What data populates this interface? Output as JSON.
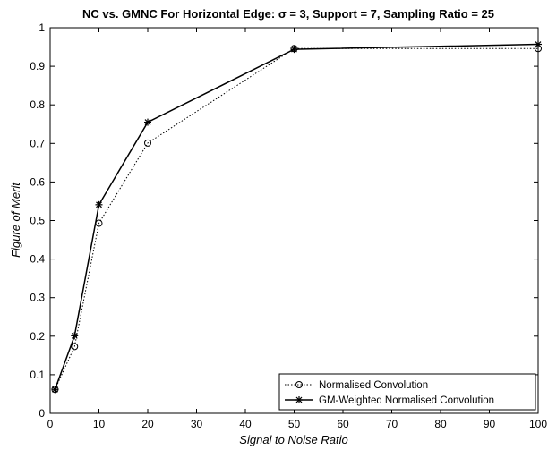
{
  "chart_data": {
    "type": "line",
    "title": "NC vs. GMNC For Horizontal Edge: σ = 3, Support = 7, Sampling Ratio = 25",
    "xlabel": "Signal to Noise Ratio",
    "ylabel": "Figure of Merit",
    "xlim": [
      0,
      100
    ],
    "ylim": [
      0,
      1
    ],
    "x_ticks": [
      0,
      10,
      20,
      30,
      40,
      50,
      60,
      70,
      80,
      90,
      100
    ],
    "y_ticks": [
      0,
      0.1,
      0.2,
      0.3,
      0.4,
      0.5,
      0.6,
      0.7,
      0.8,
      0.9,
      1
    ],
    "x_tick_labels": [
      "0",
      "10",
      "20",
      "30",
      "40",
      "50",
      "60",
      "70",
      "80",
      "90",
      "100"
    ],
    "y_tick_labels": [
      "0",
      "0.1",
      "0.2",
      "0.3",
      "0.4",
      "0.5",
      "0.6",
      "0.7",
      "0.8",
      "0.9",
      "1"
    ],
    "grid": false,
    "legend_position": "bottom-right",
    "x": [
      1,
      5,
      10,
      20,
      50,
      100
    ],
    "series": [
      {
        "name": "Normalised Convolution",
        "values": [
          0.062,
          0.173,
          0.493,
          0.701,
          0.946,
          0.946
        ],
        "marker": "circle",
        "line_style": "dotted",
        "color": "#000000"
      },
      {
        "name": "GM-Weighted Normalised Convolution",
        "values": [
          0.062,
          0.201,
          0.541,
          0.755,
          0.944,
          0.957
        ],
        "marker": "star",
        "line_style": "solid",
        "color": "#000000"
      }
    ]
  }
}
